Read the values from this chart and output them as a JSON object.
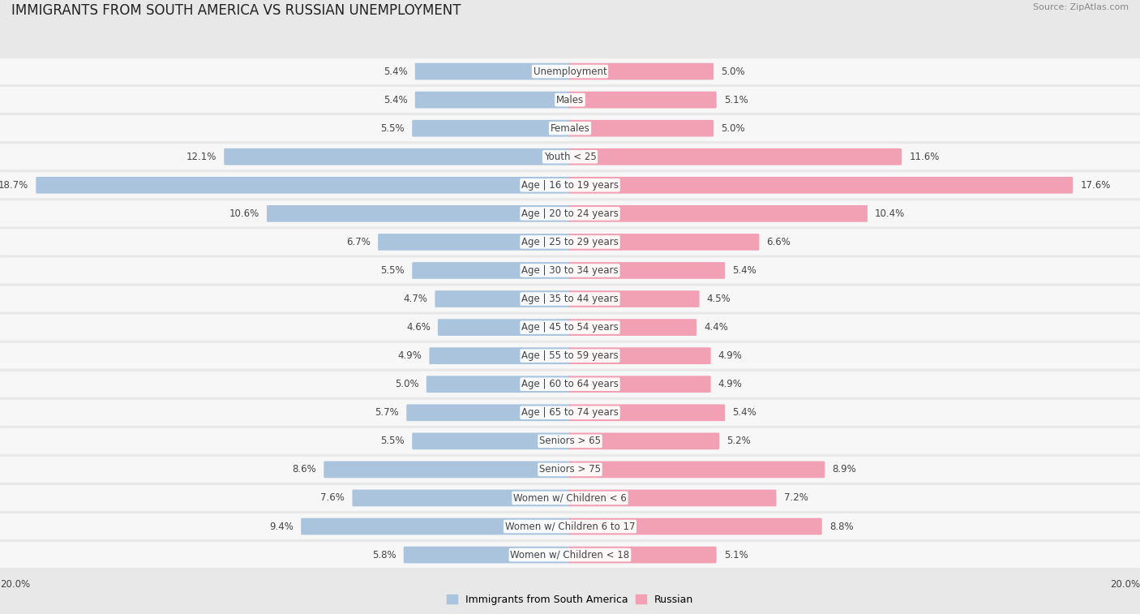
{
  "title": "IMMIGRANTS FROM SOUTH AMERICA VS RUSSIAN UNEMPLOYMENT",
  "source": "Source: ZipAtlas.com",
  "categories": [
    "Unemployment",
    "Males",
    "Females",
    "Youth < 25",
    "Age | 16 to 19 years",
    "Age | 20 to 24 years",
    "Age | 25 to 29 years",
    "Age | 30 to 34 years",
    "Age | 35 to 44 years",
    "Age | 45 to 54 years",
    "Age | 55 to 59 years",
    "Age | 60 to 64 years",
    "Age | 65 to 74 years",
    "Seniors > 65",
    "Seniors > 75",
    "Women w/ Children < 6",
    "Women w/ Children 6 to 17",
    "Women w/ Children < 18"
  ],
  "left_values": [
    5.4,
    5.4,
    5.5,
    12.1,
    18.7,
    10.6,
    6.7,
    5.5,
    4.7,
    4.6,
    4.9,
    5.0,
    5.7,
    5.5,
    8.6,
    7.6,
    9.4,
    5.8
  ],
  "right_values": [
    5.0,
    5.1,
    5.0,
    11.6,
    17.6,
    10.4,
    6.6,
    5.4,
    4.5,
    4.4,
    4.9,
    4.9,
    5.4,
    5.2,
    8.9,
    7.2,
    8.8,
    5.1
  ],
  "left_color": "#aac4de",
  "right_color": "#f2a0b4",
  "bg_color": "#e8e8e8",
  "row_bg_color": "#f7f7f7",
  "max_value": 20.0,
  "legend_left": "Immigrants from South America",
  "legend_right": "Russian",
  "title_fontsize": 12,
  "label_fontsize": 8.5,
  "value_fontsize": 8.5,
  "axis_label_fontsize": 8.5
}
